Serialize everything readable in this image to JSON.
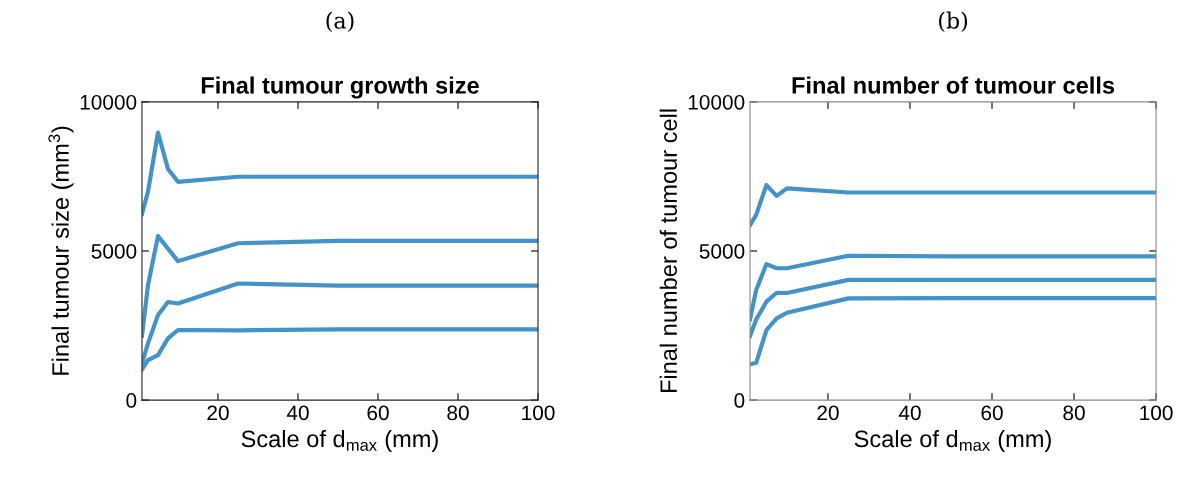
{
  "chart_data": [
    {
      "type": "line",
      "title": "Final tumour growth size",
      "annotations": [
        "(a)"
      ],
      "xlabel": "Scale of d$_{max}$ (mm)",
      "ylabel": "Final tumour size (mm$^{3}$)",
      "xlim": [
        1,
        100
      ],
      "xticks": [
        20,
        40,
        60,
        80,
        100
      ],
      "ylim": [
        0,
        10000
      ],
      "yticks": [
        0,
        5000,
        10000
      ],
      "grid": false,
      "line_style": "solid",
      "marker": "none",
      "x": [
        1,
        2.5,
        5,
        7.5,
        10,
        25,
        50,
        100
      ],
      "series": [
        {
          "color": "#4393c8",
          "values": [
            6240,
            6990,
            8970,
            7750,
            7320,
            7490,
            7490,
            7490
          ]
        },
        {
          "color": "#4393c8",
          "values": [
            2160,
            3850,
            5500,
            5080,
            4660,
            5260,
            5340,
            5340
          ]
        },
        {
          "color": "#4393c8",
          "values": [
            1230,
            1900,
            2850,
            3290,
            3240,
            3910,
            3840,
            3840
          ]
        },
        {
          "color": "#4393c8",
          "values": [
            1030,
            1340,
            1510,
            2070,
            2350,
            2340,
            2370,
            2370
          ]
        }
      ]
    },
    {
      "type": "line",
      "title": "Final number of tumour cells",
      "annotations": [
        "(b)"
      ],
      "xlabel": "Scale of d$_{max}$ (mm)",
      "ylabel": "Final number of tumour cell",
      "xlim": [
        1,
        100
      ],
      "xticks": [
        20,
        40,
        60,
        80,
        100
      ],
      "ylim": [
        0,
        10000
      ],
      "yticks": [
        0,
        5000,
        10000
      ],
      "grid": false,
      "line_style": "solid",
      "marker": "none",
      "x": [
        1,
        2.5,
        5,
        7.5,
        10,
        25,
        50,
        100
      ],
      "series": [
        {
          "color": "#4393c8",
          "values": [
            5870,
            6210,
            7210,
            6850,
            7100,
            6960,
            6960,
            6960
          ]
        },
        {
          "color": "#4393c8",
          "values": [
            2710,
            3690,
            4560,
            4420,
            4420,
            4840,
            4820,
            4820
          ]
        },
        {
          "color": "#4393c8",
          "values": [
            2150,
            2700,
            3300,
            3600,
            3590,
            4030,
            4030,
            4030
          ]
        },
        {
          "color": "#4393c8",
          "values": [
            1200,
            1250,
            2350,
            2740,
            2930,
            3410,
            3420,
            3420
          ]
        }
      ]
    }
  ]
}
